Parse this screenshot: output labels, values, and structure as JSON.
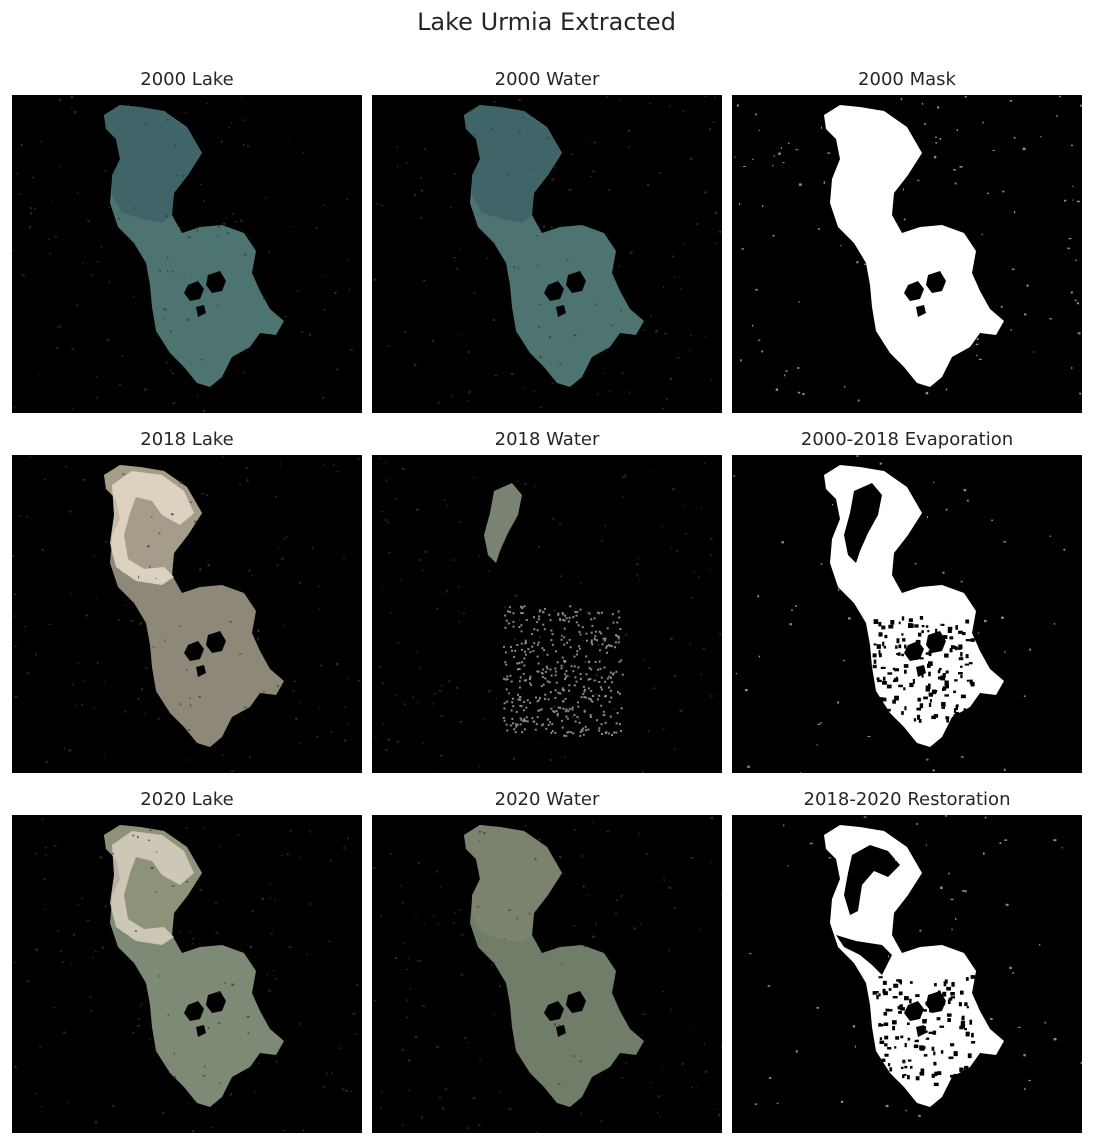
{
  "figure": {
    "title": "Lake Urmia Extracted"
  },
  "panels": [
    {
      "title": "2000 Lake",
      "kind": "rgb",
      "era": "2000",
      "fill": "#4d7470",
      "north_fill": "#3f6467"
    },
    {
      "title": "2000 Water",
      "kind": "rgb",
      "era": "2000",
      "fill": "#4d7470",
      "north_fill": "#3f6467"
    },
    {
      "title": "2000 Mask",
      "kind": "mask",
      "era": "2000",
      "fill": "#ffffff"
    },
    {
      "title": "2018 Lake",
      "kind": "rgb",
      "era": "2018",
      "fill": "#8e8878",
      "north_fill": "#a79f8c",
      "crust": "#e6dcc8"
    },
    {
      "title": "2018 Water",
      "kind": "water-sparse",
      "era": "2018",
      "fill": "#7a8372"
    },
    {
      "title": "2000-2018 Evaporation",
      "kind": "mask-evap",
      "era": "2018",
      "fill": "#ffffff"
    },
    {
      "title": "2020 Lake",
      "kind": "rgb",
      "era": "2020",
      "fill": "#7d8a76",
      "north_fill": "#8f9279",
      "crust": "#d8d0c0"
    },
    {
      "title": "2020 Water",
      "kind": "rgb-water",
      "era": "2020",
      "fill": "#6f7d69",
      "north_fill": "#7c8470"
    },
    {
      "title": "2018-2020 Restoration",
      "kind": "mask-restore",
      "era": "2020",
      "fill": "#ffffff"
    }
  ]
}
